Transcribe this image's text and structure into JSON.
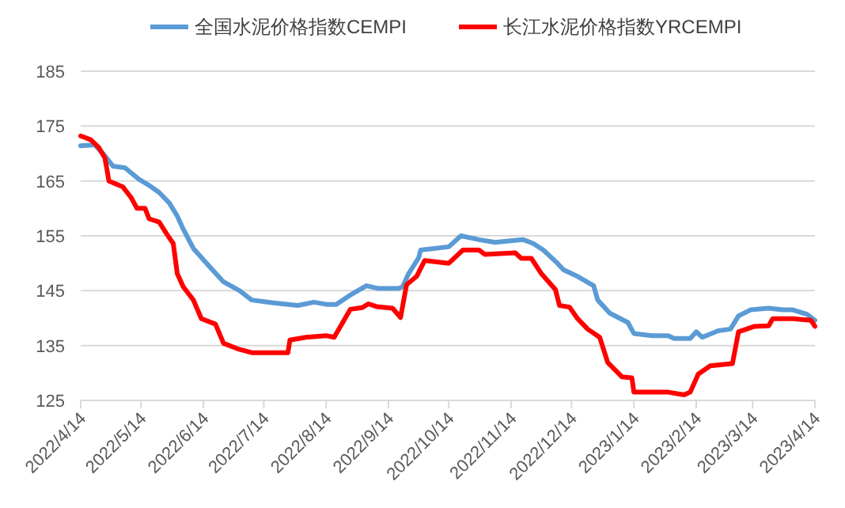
{
  "chart_data": {
    "type": "line",
    "ylim": [
      125,
      185
    ],
    "yticks": [
      125,
      135,
      145,
      155,
      165,
      175,
      185
    ],
    "xlim": [
      "2022-04-14",
      "2023-04-14"
    ],
    "xticks": [
      {
        "value": "2022-04-14",
        "label": "2022/4/14"
      },
      {
        "value": "2022-05-14",
        "label": "2022/5/14"
      },
      {
        "value": "2022-06-14",
        "label": "2022/6/14"
      },
      {
        "value": "2022-07-14",
        "label": "2022/7/14"
      },
      {
        "value": "2022-08-14",
        "label": "2022/8/14"
      },
      {
        "value": "2022-09-14",
        "label": "2022/9/14"
      },
      {
        "value": "2022-10-14",
        "label": "2022/10/14"
      },
      {
        "value": "2022-11-14",
        "label": "2022/11/14"
      },
      {
        "value": "2022-12-14",
        "label": "2022/12/14"
      },
      {
        "value": "2023-01-14",
        "label": "2023/1/14"
      },
      {
        "value": "2023-02-14",
        "label": "2023/2/14"
      },
      {
        "value": "2023-03-14",
        "label": "2023/3/14"
      },
      {
        "value": "2023-04-14",
        "label": "2023/4/14"
      }
    ],
    "grid": "y",
    "legend": "top",
    "marker": "none",
    "line_style": "solid",
    "series": [
      {
        "name": "全国水泥价格指数CEMPI",
        "color": "#5b9bd5",
        "x": [
          "2022-04-14",
          "2022-04-21",
          "2022-04-26",
          "2022-04-30",
          "2022-05-06",
          "2022-05-13",
          "2022-05-18",
          "2022-05-23",
          "2022-05-28",
          "2022-06-01",
          "2022-06-04",
          "2022-06-09",
          "2022-06-16",
          "2022-06-24",
          "2022-07-02",
          "2022-07-08",
          "2022-07-18",
          "2022-07-26",
          "2022-07-31",
          "2022-08-08",
          "2022-08-14",
          "2022-08-19",
          "2022-08-26",
          "2022-09-03",
          "2022-09-09",
          "2022-09-19",
          "2022-09-21",
          "2022-09-24",
          "2022-09-29",
          "2022-09-30",
          "2022-10-14",
          "2022-10-20",
          "2022-10-29",
          "2022-11-06",
          "2022-11-20",
          "2022-11-25",
          "2022-11-30",
          "2022-12-07",
          "2022-12-10",
          "2022-12-17",
          "2022-12-25",
          "2022-12-27",
          "2023-01-02",
          "2023-01-11",
          "2023-01-14",
          "2023-01-23",
          "2023-01-31",
          "2023-02-03",
          "2023-02-11",
          "2023-02-14",
          "2023-02-17",
          "2023-02-25",
          "2023-03-03",
          "2023-03-07",
          "2023-03-13",
          "2023-03-22",
          "2023-03-29",
          "2023-04-03",
          "2023-04-10",
          "2023-04-14"
        ],
        "values": [
          171.4,
          171.6,
          169.6,
          167.7,
          167.4,
          165.3,
          164.2,
          162.9,
          161.0,
          158.6,
          156.2,
          152.7,
          149.8,
          146.6,
          145.0,
          143.3,
          142.8,
          142.5,
          142.3,
          142.9,
          142.5,
          142.5,
          144.2,
          145.9,
          145.4,
          145.4,
          145.7,
          148.1,
          151.0,
          152.4,
          153.0,
          155.0,
          154.3,
          153.8,
          154.3,
          153.6,
          152.4,
          150.0,
          148.8,
          147.6,
          145.9,
          143.3,
          140.9,
          139.2,
          137.2,
          136.8,
          136.8,
          136.3,
          136.3,
          137.5,
          136.5,
          137.7,
          138.0,
          140.4,
          141.5,
          141.8,
          141.5,
          141.5,
          140.7,
          139.6
        ]
      },
      {
        "name": "长江水泥价格指数YRCEMPI",
        "color": "#ff0000",
        "x": [
          "2022-04-14",
          "2022-04-19",
          "2022-04-23",
          "2022-04-26",
          "2022-04-27",
          "2022-04-28",
          "2022-05-05",
          "2022-05-09",
          "2022-05-12",
          "2022-05-16",
          "2022-05-18",
          "2022-05-23",
          "2022-05-27",
          "2022-05-30",
          "2022-06-01",
          "2022-06-04",
          "2022-06-09",
          "2022-06-13",
          "2022-06-20",
          "2022-06-24",
          "2022-07-01",
          "2022-07-08",
          "2022-07-26",
          "2022-07-27",
          "2022-08-04",
          "2022-08-14",
          "2022-08-18",
          "2022-08-26",
          "2022-09-01",
          "2022-09-04",
          "2022-09-08",
          "2022-09-16",
          "2022-09-20",
          "2022-09-23",
          "2022-09-28",
          "2022-10-02",
          "2022-10-14",
          "2022-10-21",
          "2022-10-29",
          "2022-11-01",
          "2022-11-16",
          "2022-11-19",
          "2022-11-24",
          "2022-11-29",
          "2022-12-06",
          "2022-12-08",
          "2022-12-13",
          "2022-12-17",
          "2022-12-22",
          "2022-12-28",
          "2023-01-01",
          "2023-01-08",
          "2023-01-13",
          "2023-01-14",
          "2023-01-31",
          "2023-02-08",
          "2023-02-11",
          "2023-02-15",
          "2023-02-21",
          "2023-03-04",
          "2023-03-07",
          "2023-03-15",
          "2023-03-22",
          "2023-03-24",
          "2023-04-03",
          "2023-04-12",
          "2023-04-14"
        ],
        "values": [
          173.2,
          172.5,
          171.1,
          169.2,
          167.2,
          165.0,
          163.9,
          162.0,
          160.0,
          160.0,
          158.1,
          157.5,
          155.2,
          153.6,
          148.1,
          145.7,
          143.3,
          139.9,
          138.9,
          135.4,
          134.4,
          133.7,
          133.7,
          136.0,
          136.5,
          136.8,
          136.5,
          141.6,
          141.9,
          142.6,
          142.1,
          141.8,
          140.1,
          146.1,
          147.6,
          150.5,
          150.0,
          152.4,
          152.4,
          151.6,
          151.9,
          150.9,
          150.9,
          148.1,
          145.2,
          142.3,
          142.0,
          139.9,
          138.0,
          136.5,
          131.9,
          129.3,
          129.1,
          126.5,
          126.5,
          126.0,
          126.5,
          129.8,
          131.3,
          131.7,
          137.5,
          138.5,
          138.6,
          139.9,
          139.9,
          139.6,
          138.5
        ]
      }
    ]
  }
}
